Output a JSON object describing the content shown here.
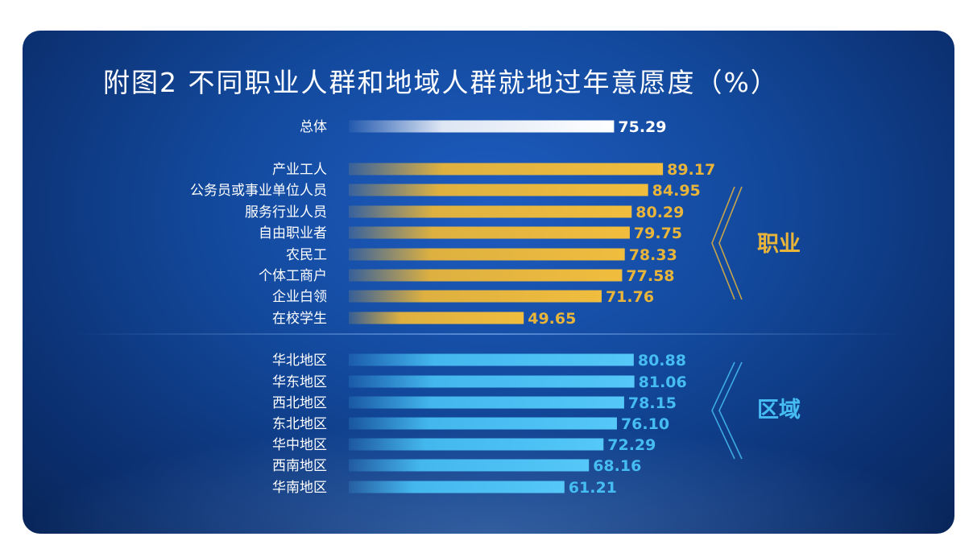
{
  "title": "附图2 不同职业人群和地域人群就地过年意愿度（%）",
  "colors": {
    "total": "#ffffff",
    "occupation": "#e8b53a",
    "region": "#46bdf2"
  },
  "chart_data": {
    "type": "bar",
    "orientation": "horizontal",
    "title": "附图2 不同职业人群和地域人群就地过年意愿度（%）",
    "xlim": [
      0,
      100
    ],
    "grid": false,
    "groups": [
      {
        "name": "",
        "color": "#ffffff",
        "categories": [
          "总体"
        ],
        "values": [
          75.29
        ],
        "value_labels": [
          "75.29"
        ]
      },
      {
        "name": "职业",
        "color": "#e8b53a",
        "categories": [
          "产业工人",
          "公务员或事业单位人员",
          "服务行业人员",
          "自由职业者",
          "农民工",
          "个体工商户",
          "企业白领",
          "在校学生"
        ],
        "values": [
          89.17,
          84.95,
          80.29,
          79.75,
          78.33,
          77.58,
          71.76,
          49.65
        ],
        "value_labels": [
          "89.17",
          "84.95",
          "80.29",
          "79.75",
          "78.33",
          "77.58",
          "71.76",
          "49.65"
        ]
      },
      {
        "name": "区域",
        "color": "#46bdf2",
        "categories": [
          "华北地区",
          "华东地区",
          "西北地区",
          "东北地区",
          "华中地区",
          "西南地区",
          "华南地区"
        ],
        "values": [
          80.88,
          81.06,
          78.15,
          76.1,
          72.29,
          68.16,
          61.21
        ],
        "value_labels": [
          "80.88",
          "81.06",
          "78.15",
          "76.10",
          "72.29",
          "68.16",
          "61.21"
        ]
      }
    ]
  }
}
